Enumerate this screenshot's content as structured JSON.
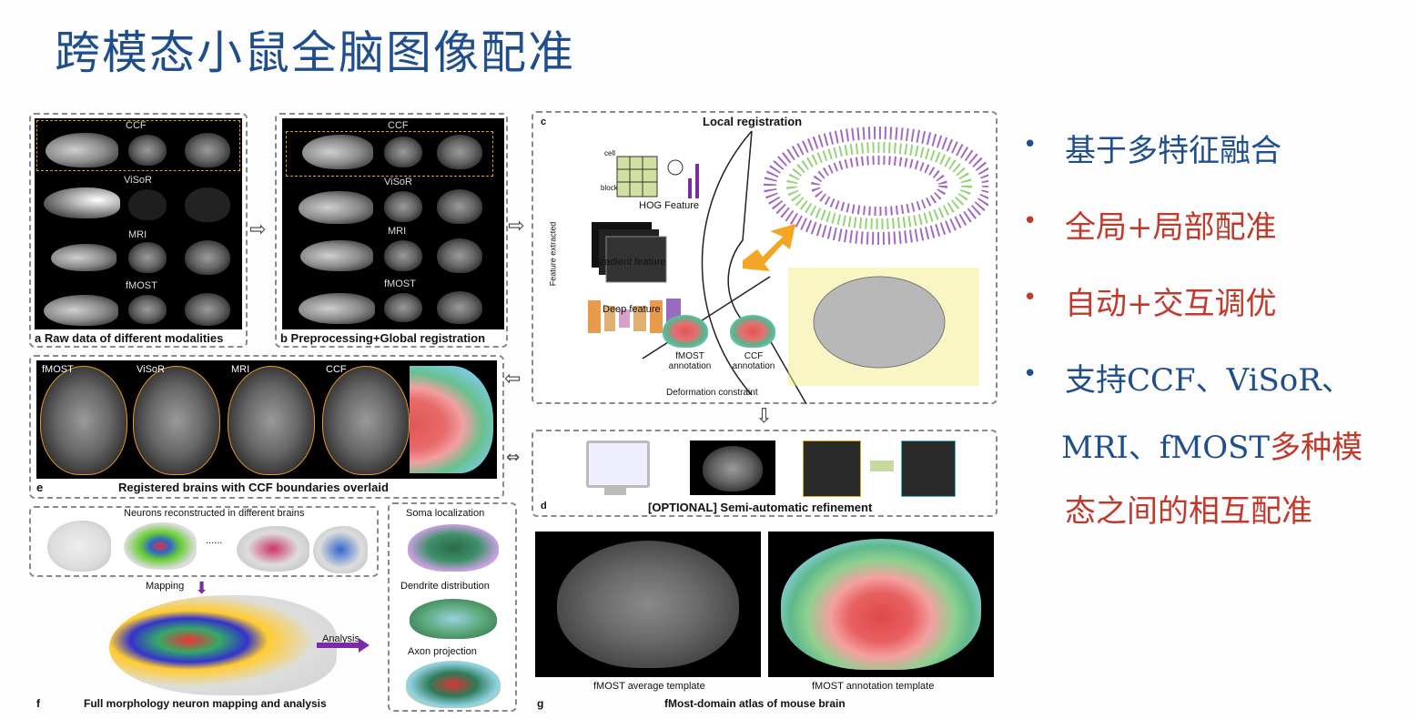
{
  "title": "跨模态小鼠全脑图像配准",
  "panel_a": {
    "rows": [
      "CCF",
      "ViSoR",
      "MRI",
      "fMOST"
    ],
    "caption": "a Raw data of different modalities"
  },
  "panel_b": {
    "rows": [
      "CCF",
      "ViSoR",
      "MRI",
      "fMOST"
    ],
    "caption": "b Preprocessing+Global registration"
  },
  "panel_c": {
    "letter": "c",
    "title": "Local registration",
    "hog": "HOG Feature",
    "gradient": "Gradient feature",
    "deep": "Deep feature",
    "feature_extracted": "Feature extracted",
    "fmost_annotation": "fMOST annotation",
    "ccf_annotation": "CCF annotation",
    "deformation": "Deformation constraint",
    "cell": "cell",
    "block": "block"
  },
  "panel_d": {
    "letter": "d",
    "caption": "[OPTIONAL] Semi-automatic refinement"
  },
  "panel_e": {
    "letter": "e",
    "labels": [
      "fMOST",
      "ViSoR",
      "MRI",
      "CCF"
    ],
    "caption": "Registered brains with CCF boundaries overlaid"
  },
  "panel_f": {
    "letter": "f",
    "neurons_title": "Neurons reconstructed in different brains",
    "ellipsis": "......",
    "mapping": "Mapping",
    "analysis": "Analysis",
    "soma": "Soma localization",
    "dendrite": "Dendrite distribution",
    "axon": "Axon projection",
    "caption": "Full morphology neuron mapping and analysis"
  },
  "panel_g": {
    "letter": "g",
    "avg": "fMOST average template",
    "annot": "fMOST annotation template",
    "caption": "fMost-domain atlas of mouse brain"
  },
  "bullets": [
    {
      "segments": [
        {
          "text": "基于多特征融合",
          "color": "blue"
        }
      ],
      "dot_color": "blue"
    },
    {
      "segments": [
        {
          "text": "全局+局部配准",
          "color": "red"
        }
      ],
      "dot_color": "red"
    },
    {
      "segments": [
        {
          "text": "自动+交互调优",
          "color": "red"
        }
      ],
      "dot_color": "red"
    },
    {
      "segments": [
        {
          "text": "支持CCF、ViSoR、",
          "color": "blue"
        }
      ],
      "dot_color": "blue"
    },
    {
      "segments": [
        {
          "text": "MRI、fMOST",
          "color": "blue"
        },
        {
          "text": "多种模",
          "color": "red"
        }
      ],
      "dot_color": ""
    },
    {
      "segments": [
        {
          "text": "态之间的相互配准",
          "color": "red"
        }
      ],
      "dot_color": ""
    }
  ],
  "colors": {
    "blue": "#1f4e8c",
    "red": "#c0392b"
  }
}
